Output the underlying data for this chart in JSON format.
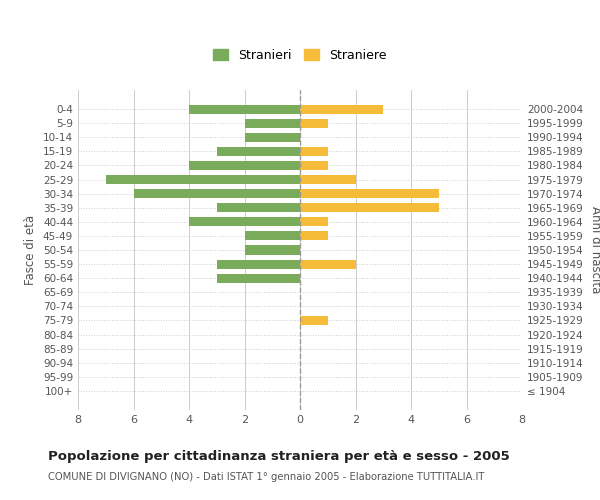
{
  "age_groups": [
    "100+",
    "95-99",
    "90-94",
    "85-89",
    "80-84",
    "75-79",
    "70-74",
    "65-69",
    "60-64",
    "55-59",
    "50-54",
    "45-49",
    "40-44",
    "35-39",
    "30-34",
    "25-29",
    "20-24",
    "15-19",
    "10-14",
    "5-9",
    "0-4"
  ],
  "birth_years": [
    "≤ 1904",
    "1905-1909",
    "1910-1914",
    "1915-1919",
    "1920-1924",
    "1925-1929",
    "1930-1934",
    "1935-1939",
    "1940-1944",
    "1945-1949",
    "1950-1954",
    "1955-1959",
    "1960-1964",
    "1965-1969",
    "1970-1974",
    "1975-1979",
    "1980-1984",
    "1985-1989",
    "1990-1994",
    "1995-1999",
    "2000-2004"
  ],
  "stranieri": [
    0,
    0,
    0,
    0,
    0,
    0,
    0,
    0,
    3,
    3,
    2,
    2,
    4,
    3,
    6,
    7,
    4,
    3,
    2,
    2,
    4
  ],
  "straniere": [
    0,
    0,
    0,
    0,
    0,
    1,
    0,
    0,
    0,
    2,
    0,
    1,
    1,
    5,
    5,
    2,
    1,
    1,
    0,
    1,
    3
  ],
  "stranieri_color": "#7aab5a",
  "straniere_color": "#f5bc3a",
  "xlim": 8,
  "title": "Popolazione per cittadinanza straniera per età e sesso - 2005",
  "subtitle": "COMUNE DI DIVIGNANO (NO) - Dati ISTAT 1° gennaio 2005 - Elaborazione TUTTITALIA.IT",
  "ylabel_left": "Fasce di età",
  "ylabel_right": "Anni di nascita",
  "legend_stranieri": "Stranieri",
  "legend_straniere": "Straniere",
  "bg_color": "#ffffff",
  "grid_color": "#cccccc",
  "tick_color": "#555555"
}
